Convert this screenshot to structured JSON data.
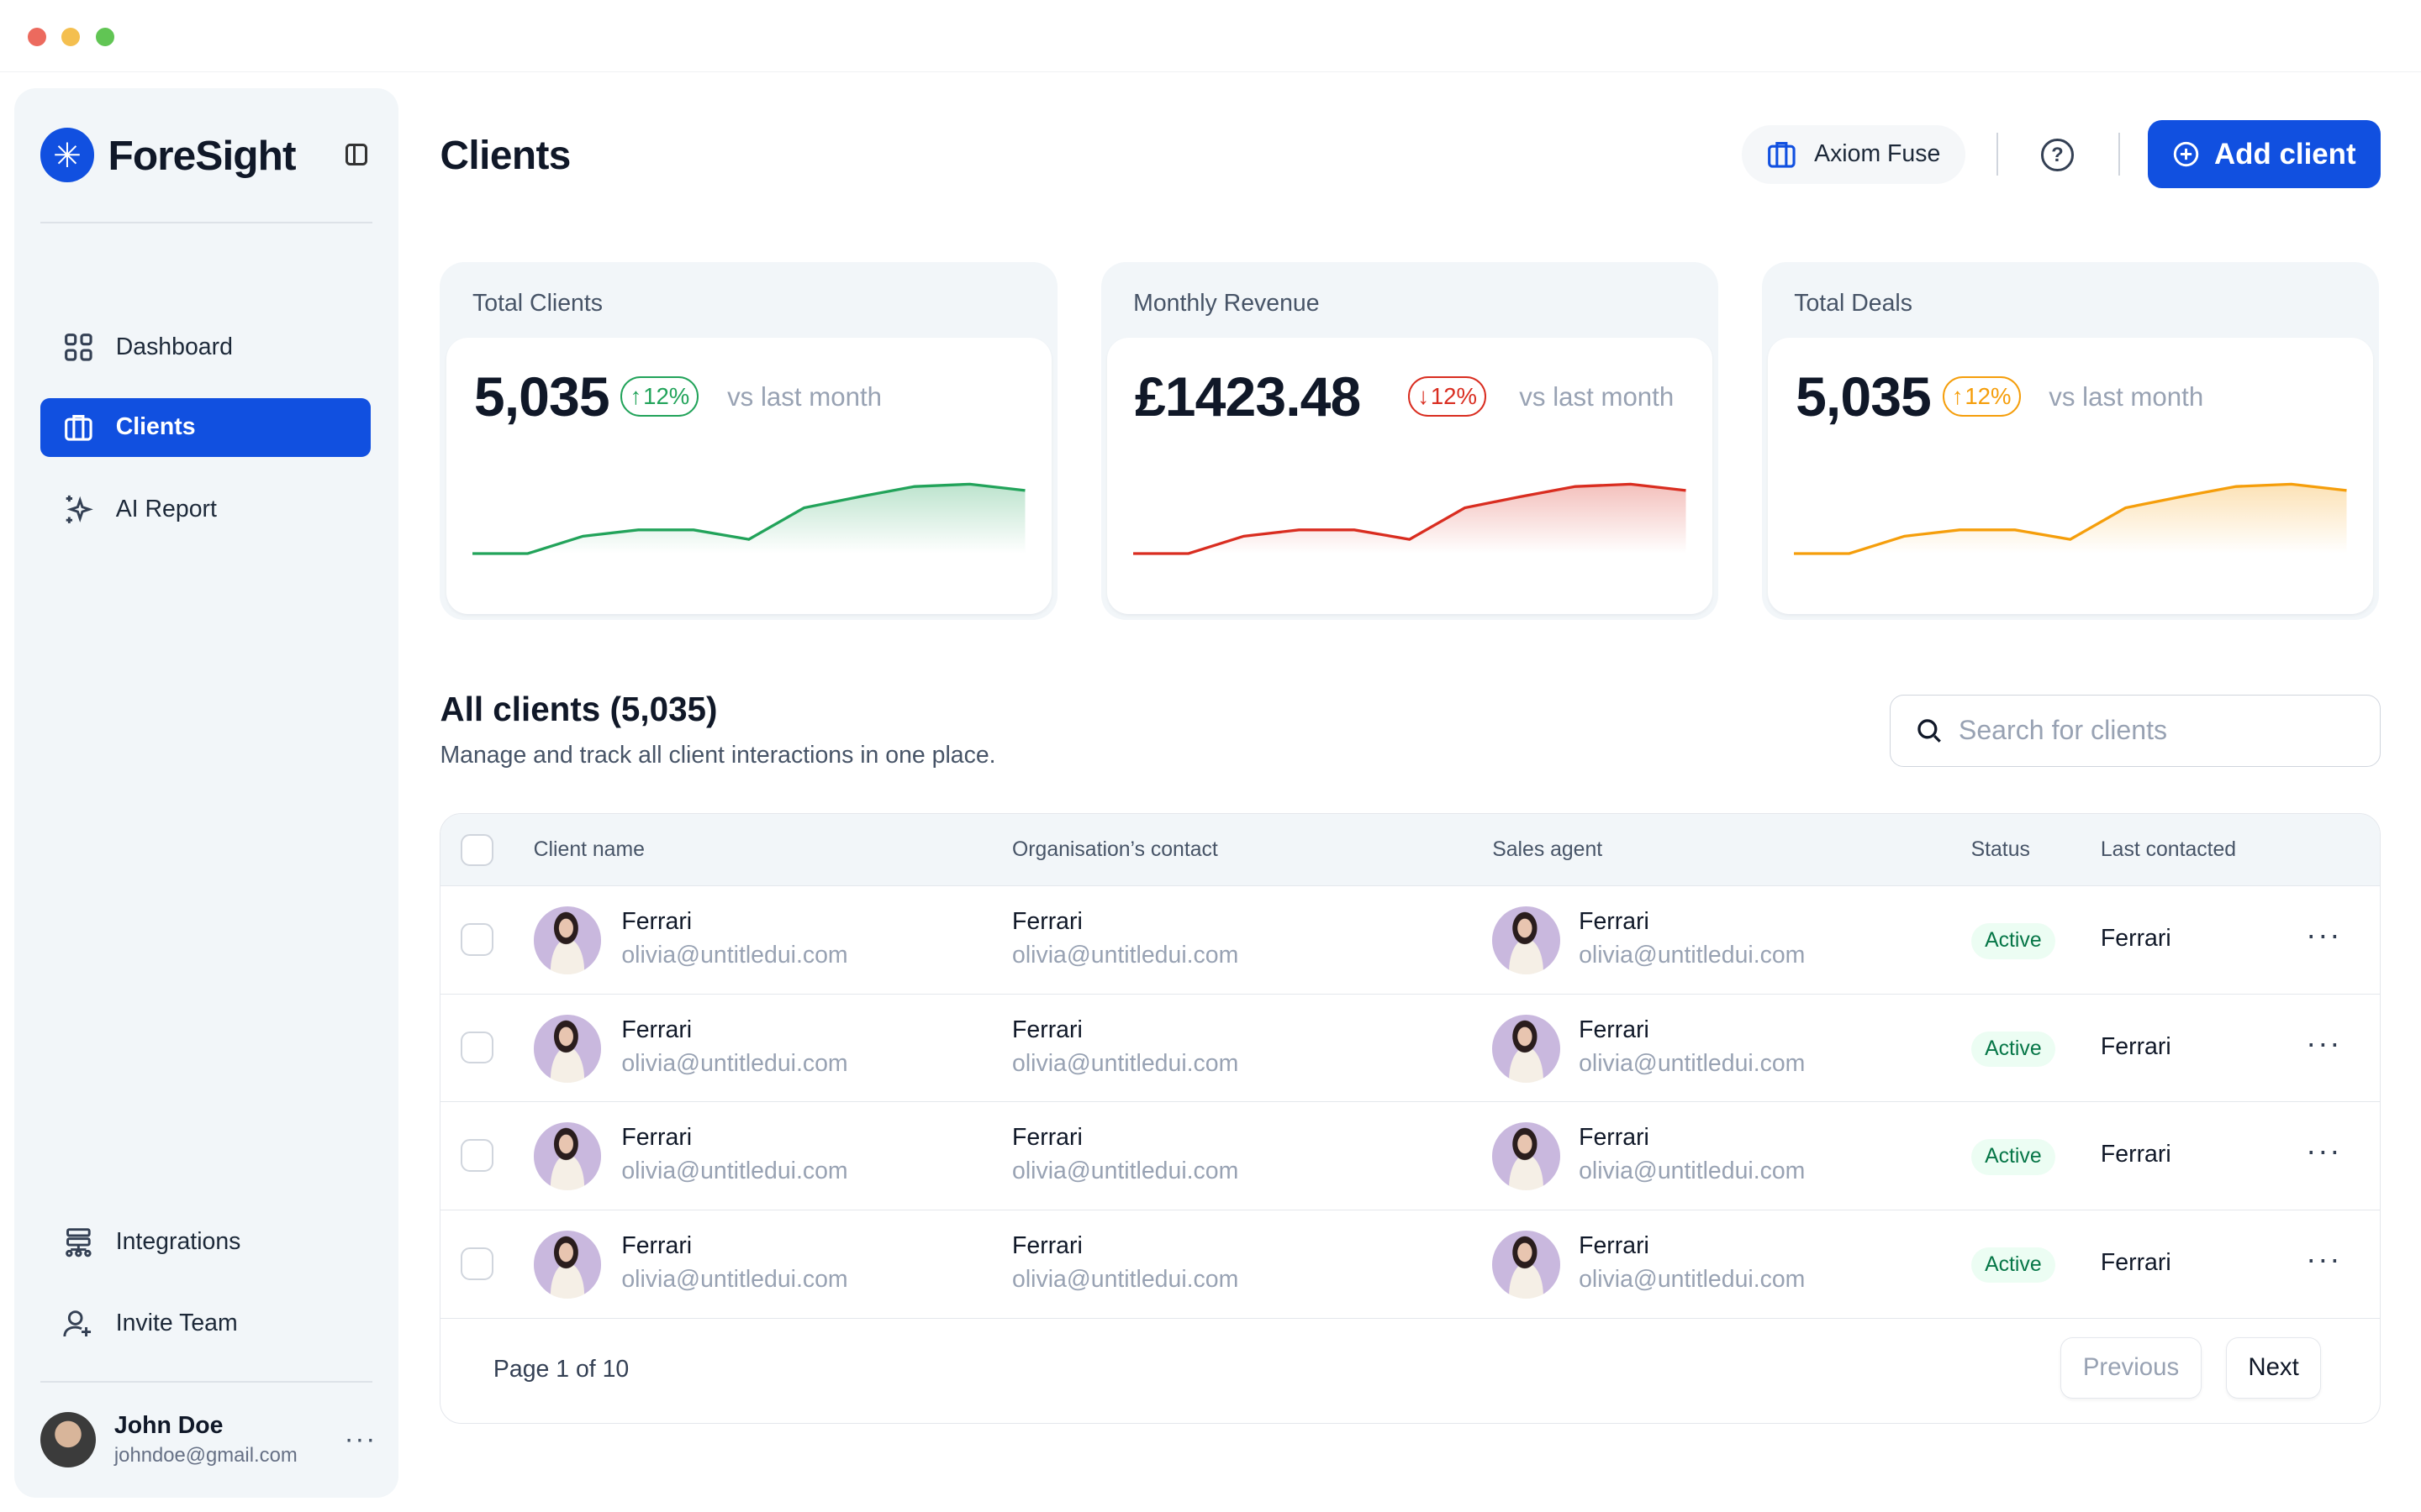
{
  "app": {
    "name": "ForeSight"
  },
  "sidebar": {
    "items": [
      {
        "label": "Dashboard"
      },
      {
        "label": "Clients"
      },
      {
        "label": "AI Report"
      }
    ],
    "bottom_items": [
      {
        "label": "Integrations"
      },
      {
        "label": "Invite Team"
      }
    ],
    "user": {
      "name": "John Doe",
      "email": "johndoe@gmail.com"
    }
  },
  "header": {
    "title": "Clients",
    "org": "Axiom Fuse",
    "help": "?",
    "add_label": "Add client"
  },
  "colors": {
    "accent": "#1150e0",
    "green": "#16a34a",
    "red": "#d92d20",
    "orange": "#f59e0b"
  },
  "cards": [
    {
      "label": "Total Clients",
      "value": "5,035",
      "change": "12%",
      "direction": "up",
      "vs": "vs last month",
      "color": "#22a35a",
      "spark": [
        0,
        0,
        22,
        30,
        30,
        18,
        58,
        72,
        85,
        88,
        80
      ]
    },
    {
      "label": "Monthly Revenue",
      "value": "£1423.48",
      "change": "12%",
      "direction": "down",
      "vs": "vs last month",
      "color": "#d92d20",
      "spark": [
        0,
        0,
        22,
        30,
        30,
        18,
        58,
        72,
        85,
        88,
        80
      ]
    },
    {
      "label": "Total Deals",
      "value": "5,035",
      "change": "12%",
      "direction": "up",
      "vs": "vs last month",
      "color": "#f59e0b",
      "spark": [
        0,
        0,
        22,
        30,
        30,
        18,
        58,
        72,
        85,
        88,
        80
      ]
    }
  ],
  "clients": {
    "title": "All clients (5,035)",
    "subtitle": "Manage and track all client interactions in one place.",
    "search_placeholder": "Search for clients",
    "columns": [
      "Client name",
      "Organisation’s contact",
      "Sales agent",
      "Status",
      "Last contacted"
    ],
    "rows": [
      {
        "client": "Ferrari",
        "client_email": "olivia@untitledui.com",
        "org": "Ferrari",
        "org_email": "olivia@untitledui.com",
        "agent": "Ferrari",
        "agent_email": "olivia@untitledui.com",
        "status": "Active",
        "last": "Ferrari"
      },
      {
        "client": "Ferrari",
        "client_email": "olivia@untitledui.com",
        "org": "Ferrari",
        "org_email": "olivia@untitledui.com",
        "agent": "Ferrari",
        "agent_email": "olivia@untitledui.com",
        "status": "Active",
        "last": "Ferrari"
      },
      {
        "client": "Ferrari",
        "client_email": "olivia@untitledui.com",
        "org": "Ferrari",
        "org_email": "olivia@untitledui.com",
        "agent": "Ferrari",
        "agent_email": "olivia@untitledui.com",
        "status": "Active",
        "last": "Ferrari"
      },
      {
        "client": "Ferrari",
        "client_email": "olivia@untitledui.com",
        "org": "Ferrari",
        "org_email": "olivia@untitledui.com",
        "agent": "Ferrari",
        "agent_email": "olivia@untitledui.com",
        "status": "Active",
        "last": "Ferrari"
      }
    ],
    "pagination": {
      "label": "Page 1 of 10",
      "previous": "Previous",
      "next": "Next"
    }
  }
}
